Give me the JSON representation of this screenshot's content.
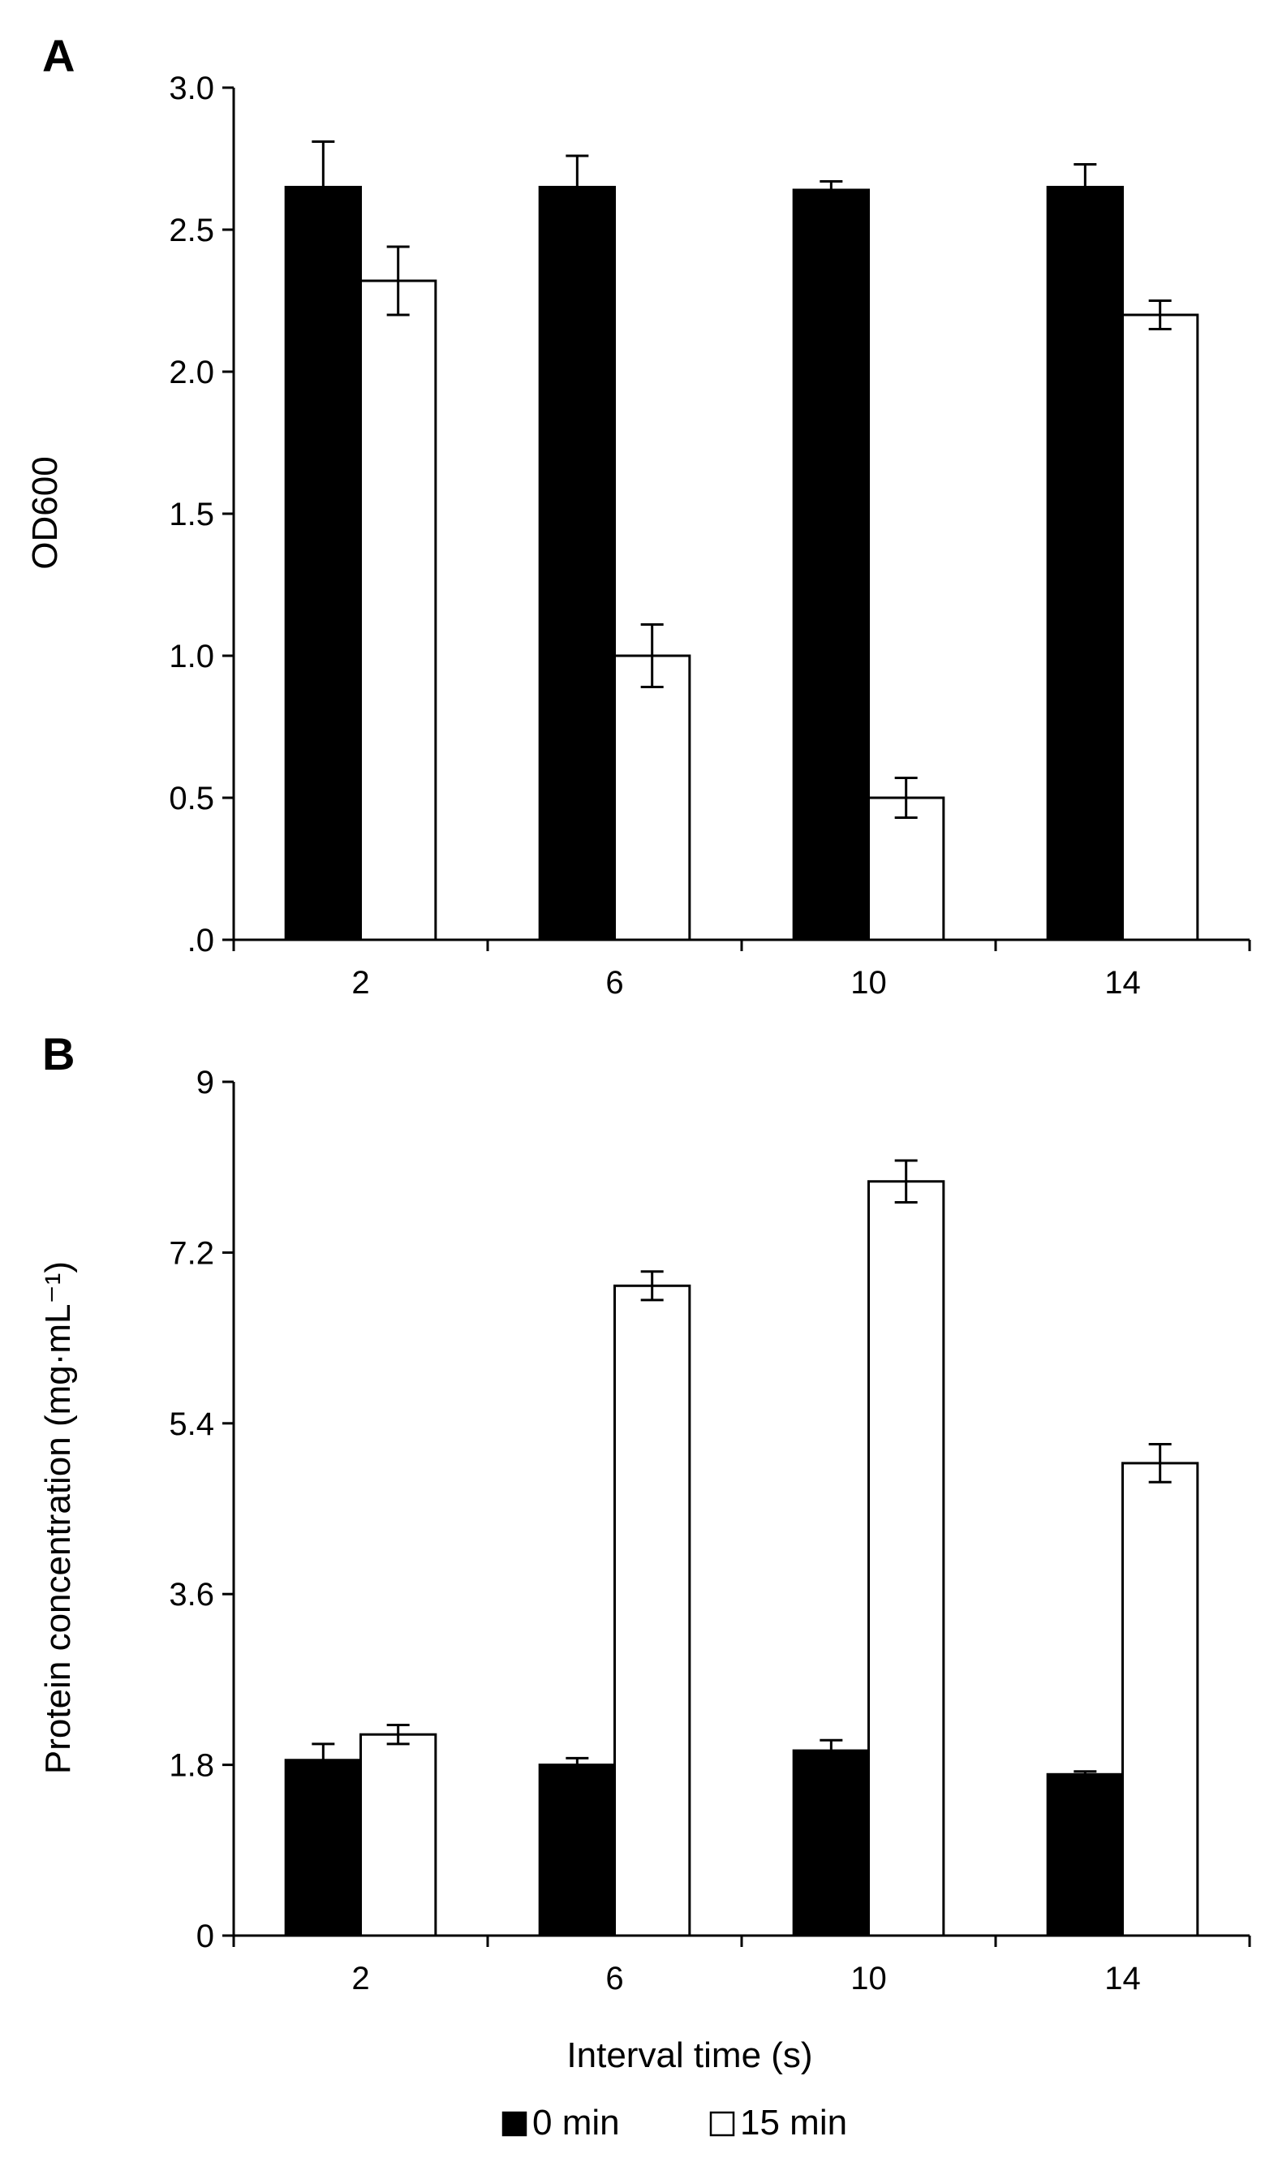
{
  "chart_data": [
    {
      "type": "bar",
      "panel_label": "A",
      "title": "",
      "xlabel": "",
      "ylabel": "OD600",
      "categories": [
        "2",
        "6",
        "10",
        "14"
      ],
      "ylim": [
        0,
        3.0
      ],
      "yticks": [
        0,
        0.5,
        1.0,
        1.5,
        2.0,
        2.5,
        3.0
      ],
      "ytick_labels": [
        ".0",
        "0.5",
        "1.0",
        "1.5",
        "2.0",
        "2.5",
        "3.0"
      ],
      "grid": false,
      "series": [
        {
          "name": "0 min",
          "color": "#000000",
          "values": [
            2.65,
            2.65,
            2.64,
            2.65
          ],
          "errors": [
            0.16,
            0.11,
            0.03,
            0.08
          ]
        },
        {
          "name": "15 min",
          "color": "#ffffff",
          "values": [
            2.32,
            1.0,
            0.5,
            2.2
          ],
          "errors": [
            0.12,
            0.11,
            0.07,
            0.05
          ]
        }
      ]
    },
    {
      "type": "bar",
      "panel_label": "B",
      "title": "",
      "xlabel": "Interval time (s)",
      "ylabel": "Protein concentration (mg·mL⁻¹)",
      "categories": [
        "2",
        "6",
        "10",
        "14"
      ],
      "ylim": [
        0,
        9
      ],
      "yticks": [
        0,
        1.8,
        3.6,
        5.4,
        7.2,
        9
      ],
      "ytick_labels": [
        "0",
        "1.8",
        "3.6",
        "5.4",
        "7.2",
        "9"
      ],
      "grid": false,
      "series": [
        {
          "name": "0 min",
          "color": "#000000",
          "values": [
            1.85,
            1.8,
            1.95,
            1.7
          ],
          "errors": [
            0.17,
            0.07,
            0.11,
            0.03
          ]
        },
        {
          "name": "15 min",
          "color": "#ffffff",
          "values": [
            2.12,
            6.85,
            7.95,
            4.98
          ],
          "errors": [
            0.1,
            0.15,
            0.22,
            0.2
          ]
        }
      ]
    }
  ],
  "legend": {
    "placement": "bottom-center",
    "items": [
      {
        "label": "0 min",
        "color": "#000000"
      },
      {
        "label": "15 min",
        "color": "#ffffff"
      }
    ]
  }
}
